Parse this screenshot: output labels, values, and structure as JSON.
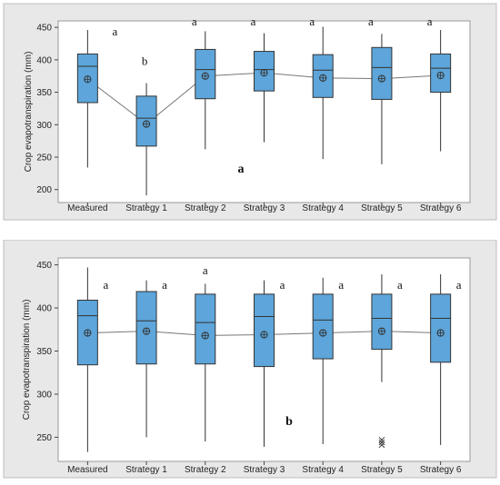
{
  "chart_data": [
    {
      "type": "box",
      "panel_label": "a",
      "ylabel": "Crop evapotranspiration (mm)",
      "ylim": [
        180,
        460
      ],
      "yticks": [
        200,
        250,
        300,
        350,
        400,
        450
      ],
      "categories": [
        "Measured",
        "Strategy 1",
        "Strategy 2",
        "Strategy 3",
        "Strategy 4",
        "Strategy 5",
        "Strategy 6"
      ],
      "boxes": [
        {
          "min": 234,
          "q1": 334,
          "median": 390,
          "q3": 409,
          "max": 446,
          "mean": 370,
          "group": "a"
        },
        {
          "min": 191,
          "q1": 267,
          "median": 310,
          "q3": 344,
          "max": 364,
          "mean": 301,
          "group": "b"
        },
        {
          "min": 262,
          "q1": 340,
          "median": 385,
          "q3": 416,
          "max": 444,
          "mean": 375,
          "group": "a"
        },
        {
          "min": 273,
          "q1": 352,
          "median": 385,
          "q3": 413,
          "max": 441,
          "mean": 380,
          "group": "a"
        },
        {
          "min": 247,
          "q1": 342,
          "median": 384,
          "q3": 408,
          "max": 451,
          "mean": 372,
          "group": "a"
        },
        {
          "min": 239,
          "q1": 339,
          "median": 388,
          "q3": 419,
          "max": 440,
          "mean": 371,
          "group": "a"
        },
        {
          "min": 259,
          "q1": 350,
          "median": 387,
          "q3": 409,
          "max": 446,
          "mean": 376,
          "group": "a"
        }
      ],
      "box_color": "#5da5da",
      "mean_line": true
    },
    {
      "type": "box",
      "panel_label": "b",
      "ylabel": "Crop evapotranspiration (mm)",
      "ylim": [
        222,
        458
      ],
      "yticks": [
        250,
        300,
        350,
        400,
        450
      ],
      "categories": [
        "Measured",
        "Strategy 1",
        "Strategy 2",
        "Strategy 3",
        "Strategy 4",
        "Strategy 5",
        "Strategy 6"
      ],
      "boxes": [
        {
          "min": 233,
          "q1": 334,
          "median": 391,
          "q3": 409,
          "max": 447,
          "mean": 371,
          "group": "a"
        },
        {
          "min": 250,
          "q1": 335,
          "median": 385,
          "q3": 419,
          "max": 432,
          "mean": 373,
          "group": "a"
        },
        {
          "min": 245,
          "q1": 335,
          "median": 383,
          "q3": 416,
          "max": 428,
          "mean": 368,
          "group": "a"
        },
        {
          "min": 239,
          "q1": 332,
          "median": 390,
          "q3": 416,
          "max": 432,
          "mean": 369,
          "group": "a"
        },
        {
          "min": 242,
          "q1": 341,
          "median": 386,
          "q3": 416,
          "max": 435,
          "mean": 371,
          "group": "a"
        },
        {
          "min": 314,
          "q1": 352,
          "median": 388,
          "q3": 416,
          "max": 439,
          "mean": 373,
          "group": "a",
          "outliers": [
            247,
            244,
            241
          ]
        },
        {
          "min": 241,
          "q1": 337,
          "median": 388,
          "q3": 416,
          "max": 439,
          "mean": 371,
          "group": "a"
        }
      ],
      "box_color": "#5da5da",
      "mean_line": true
    }
  ]
}
